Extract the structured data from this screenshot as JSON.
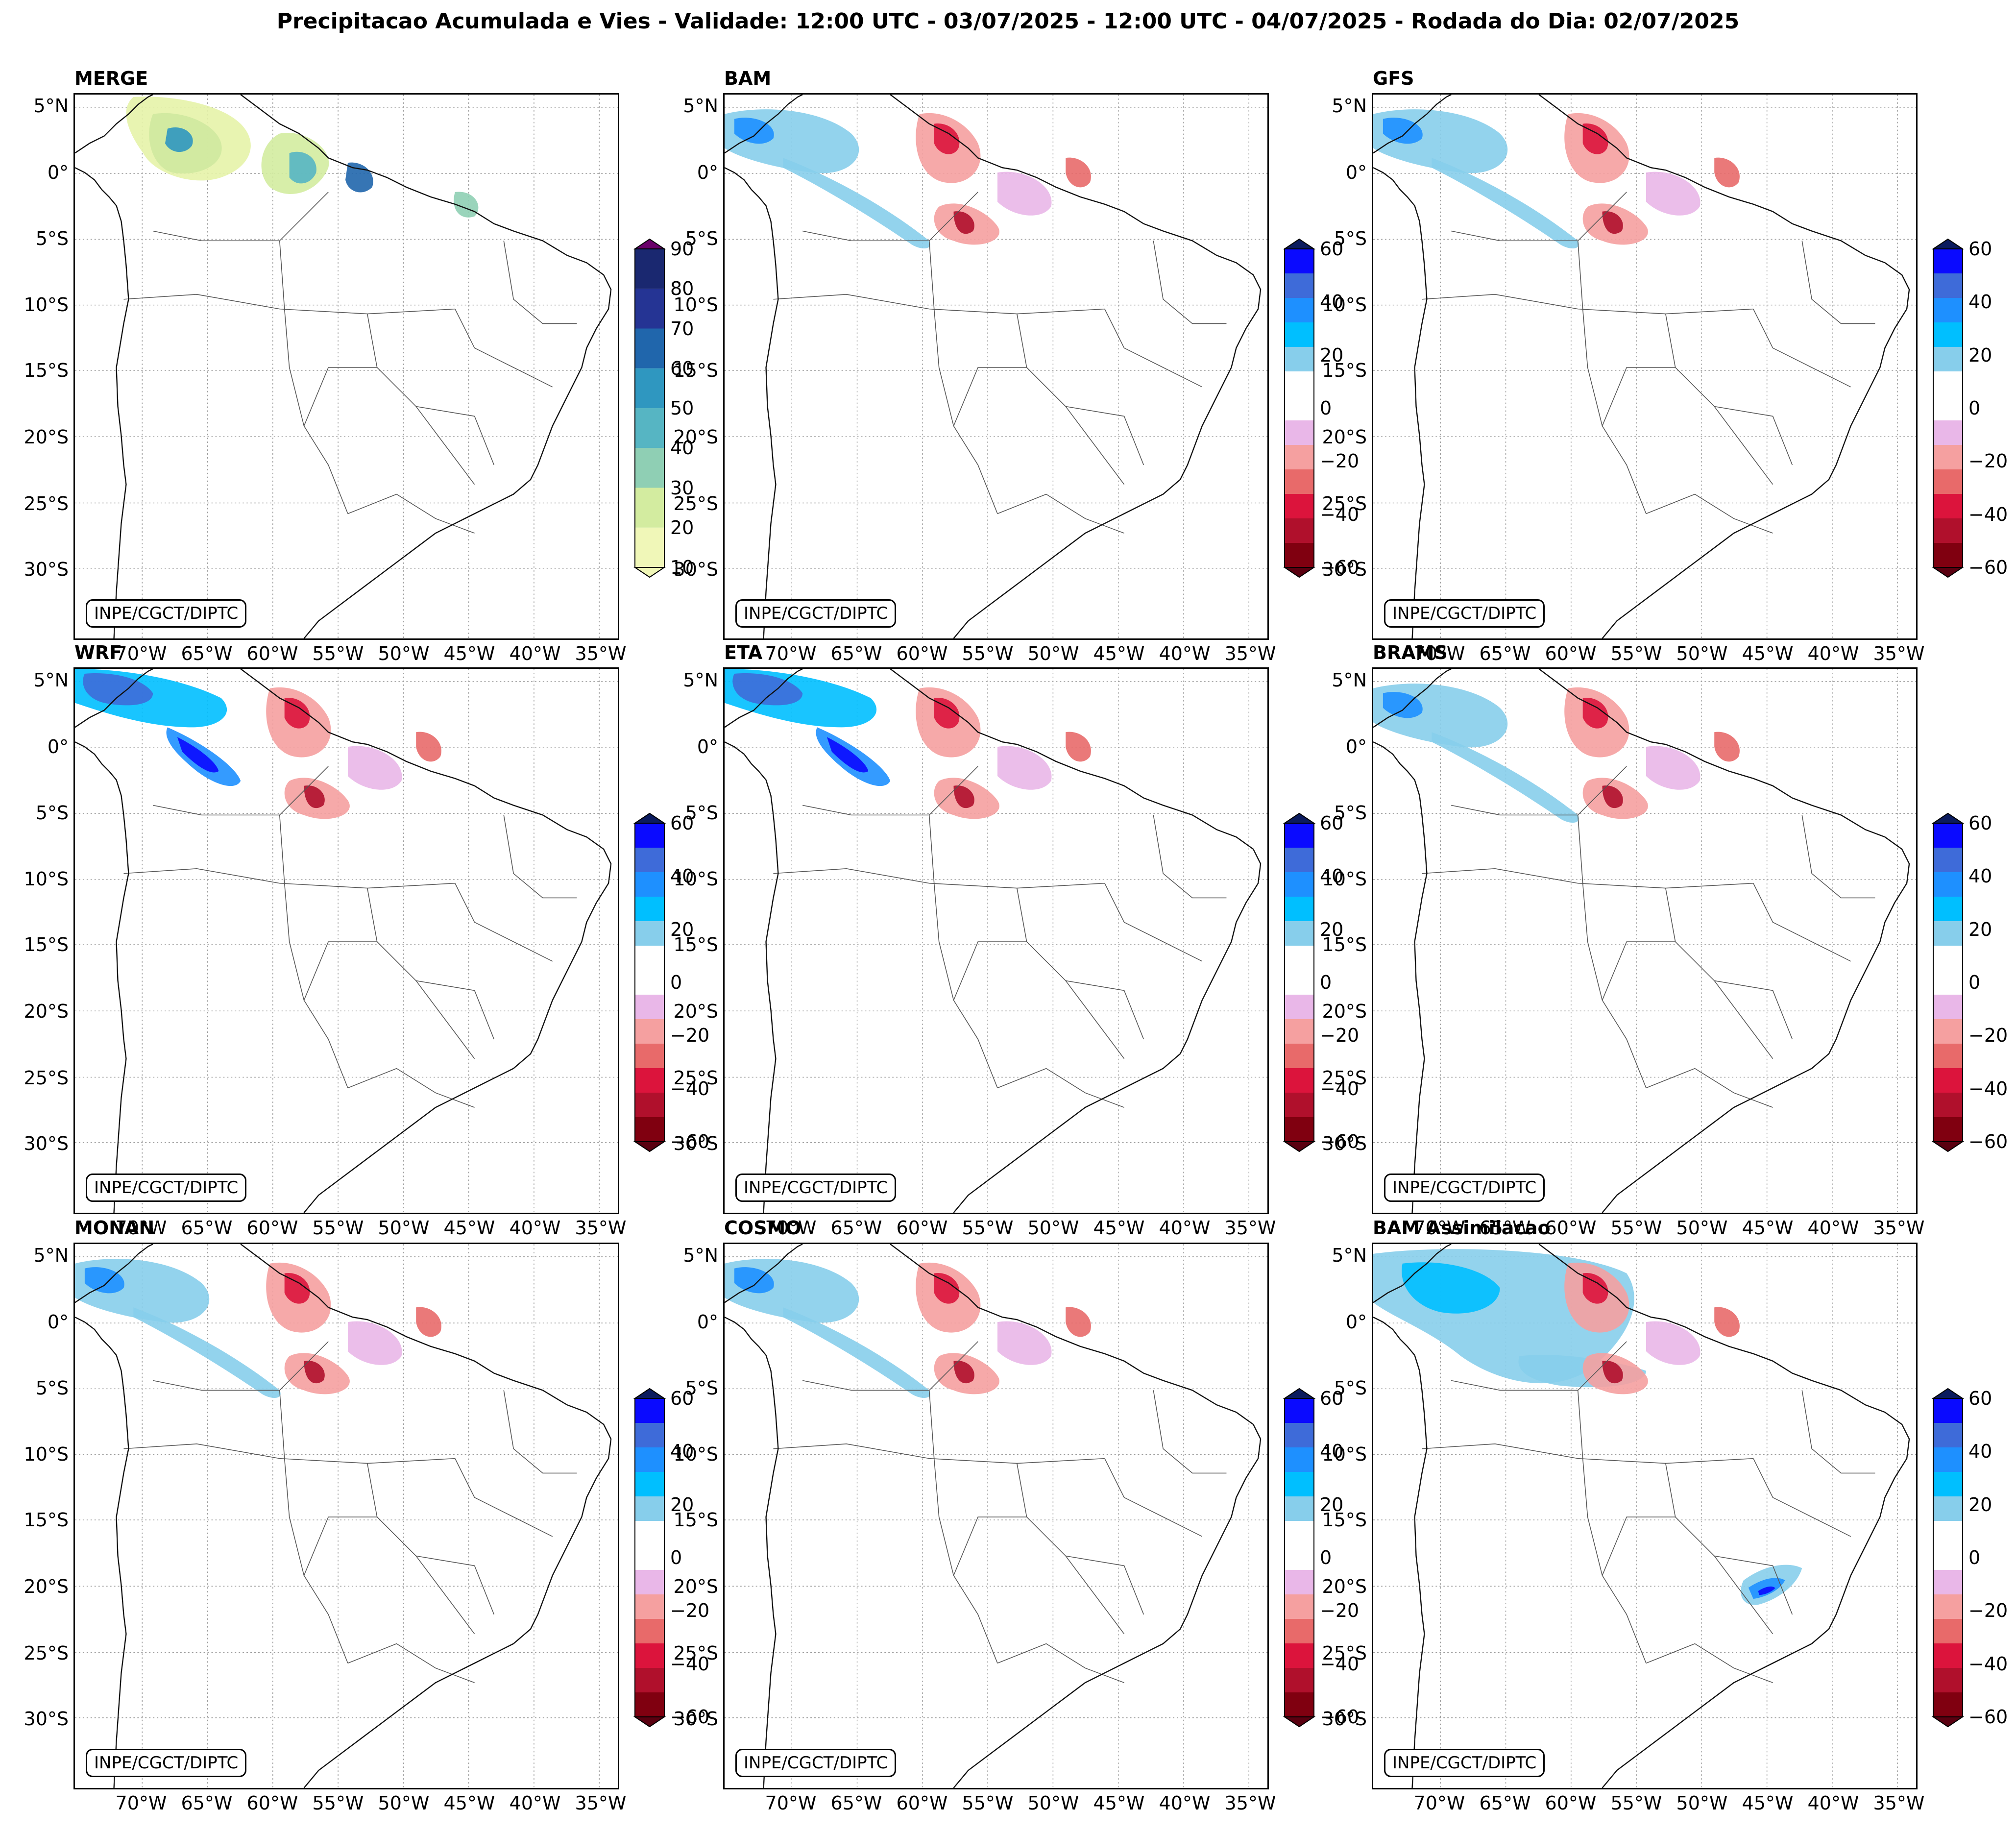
{
  "title": "Precipitacao Acumulada e Vies - Validade: 12:00 UTC - 03/07/2025 - 12:00 UTC - 04/07/2025 - Rodada do Dia: 02/07/2025",
  "credit": "INPE/CGCT/DIPTC",
  "axes": {
    "lat_labels": [
      "5°N",
      "0°",
      "5°S",
      "10°S",
      "15°S",
      "20°S",
      "25°S",
      "30°S"
    ],
    "lon_labels": [
      "70°W",
      "65°W",
      "60°W",
      "55°W",
      "50°W",
      "45°W",
      "40°W",
      "35°W"
    ]
  },
  "colorbars": {
    "precip": {
      "ticks": [
        "10",
        "20",
        "30",
        "40",
        "50",
        "60",
        "70",
        "80",
        "90"
      ],
      "colors": [
        "#f0f7b8",
        "#d3eca0",
        "#8fcfb4",
        "#56b5c3",
        "#2f97c0",
        "#2066ac",
        "#253494",
        "#1a2870",
        "#081d58"
      ],
      "over_color": "#6a006a"
    },
    "bias": {
      "ticks": [
        "60",
        "40",
        "20",
        "0",
        "−20",
        "−40",
        "−60"
      ],
      "colors_top_to_bottom": [
        "#0a0aff",
        "#3e6bd9",
        "#1e90ff",
        "#00bfff",
        "#87ceeb",
        "#ffffff",
        "#ffffff",
        "#e9b7e8",
        "#f5a0a0",
        "#e86a6a",
        "#dc143c",
        "#b0102c",
        "#800010"
      ],
      "over_color": "#0b1b5e",
      "under_color": "#5a0010"
    }
  },
  "panels": [
    {
      "title": "MERGE",
      "scale": "precip"
    },
    {
      "title": "BAM",
      "scale": "bias"
    },
    {
      "title": "GFS",
      "scale": "bias"
    },
    {
      "title": "WRF",
      "scale": "bias"
    },
    {
      "title": "ETA",
      "scale": "bias"
    },
    {
      "title": "BRAMS",
      "scale": "bias"
    },
    {
      "title": "MONAN",
      "scale": "bias"
    },
    {
      "title": "COSMO",
      "scale": "bias"
    },
    {
      "title": "BAM Assimilacao",
      "scale": "bias"
    }
  ]
}
